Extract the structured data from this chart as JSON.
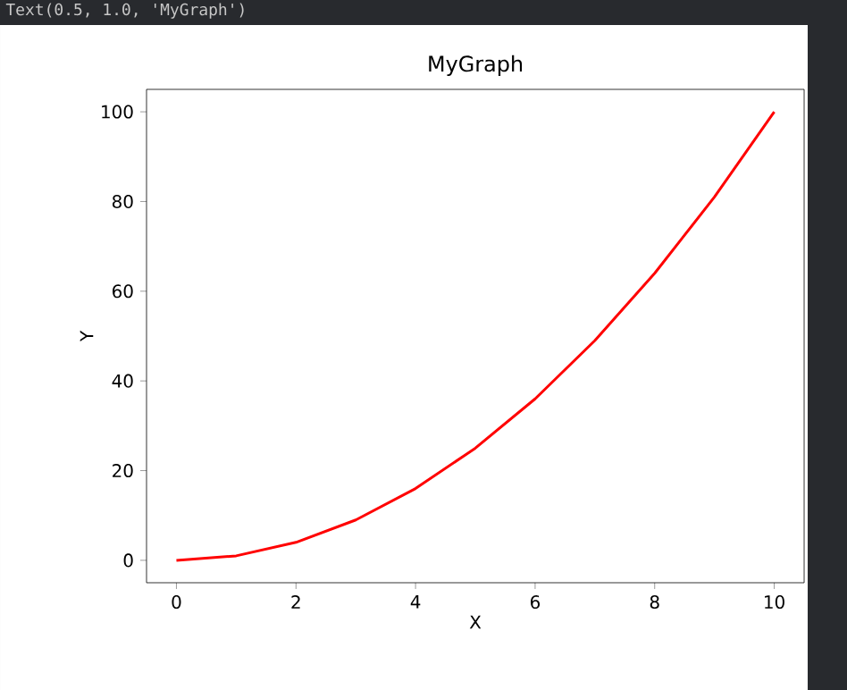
{
  "chart_data": {
    "type": "line",
    "title": "MyGraph",
    "xlabel": "X",
    "ylabel": "Y",
    "annotations": [
      "Text(0.5, 1.0, 'MyGraph')"
    ],
    "x": [
      0,
      1,
      2,
      3,
      4,
      5,
      6,
      7,
      8,
      9,
      10
    ],
    "values": [
      0,
      1,
      4,
      9,
      16,
      25,
      36,
      49,
      64,
      81,
      100
    ],
    "color": "#ff0000",
    "xlim": [
      -0.5,
      10.5
    ],
    "ylim": [
      -5,
      105
    ],
    "xticks": [
      0,
      2,
      4,
      6,
      8,
      10
    ],
    "yticks": [
      0,
      20,
      40,
      60,
      80,
      100
    ],
    "grid": false
  }
}
